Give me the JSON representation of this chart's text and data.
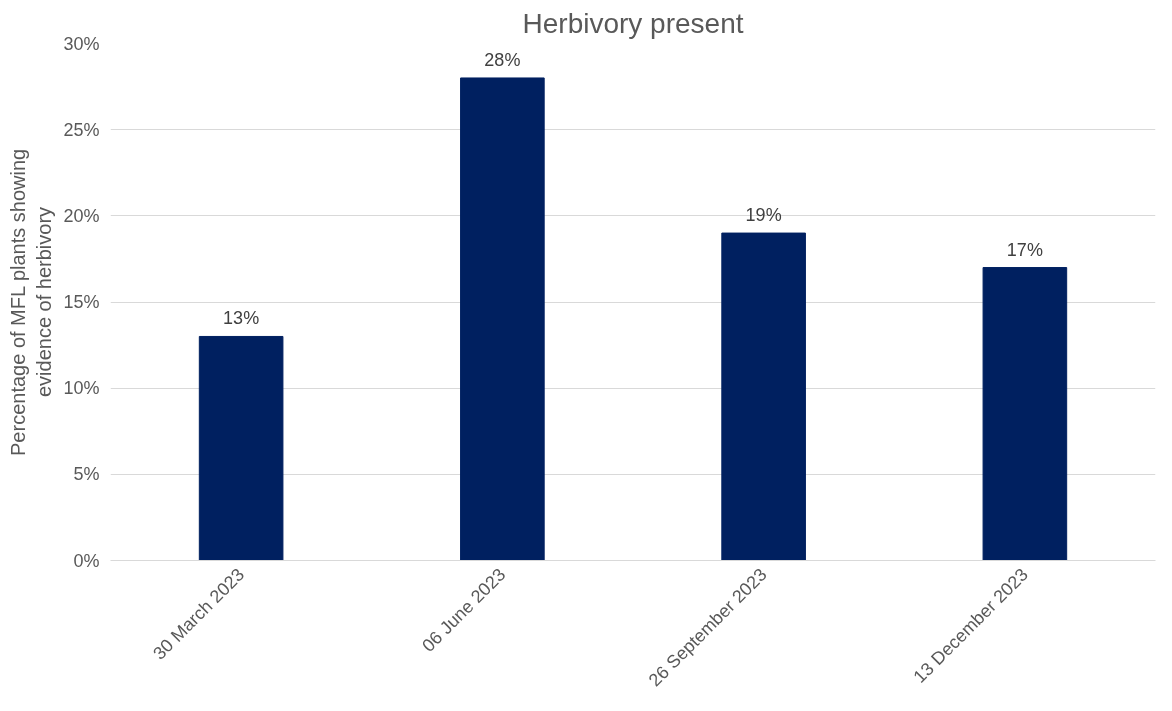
{
  "chart_data": {
    "type": "bar",
    "title": "Herbivory present",
    "ylabel": "Percentage of MFL plants showing evidence of herbivory",
    "categories": [
      "30 March 2023",
      "06 June 2023",
      "26 September 2023",
      "13 December 2023"
    ],
    "values": [
      13,
      28,
      19,
      17
    ],
    "color": "#002060",
    "value_labels": [
      "13%",
      "28%",
      "19%",
      "17%"
    ],
    "ylim": [
      0,
      30
    ],
    "yticks": [
      {
        "value": 0,
        "label": "0%"
      },
      {
        "value": 5,
        "label": "5%"
      },
      {
        "value": 10,
        "label": "10%"
      },
      {
        "value": 15,
        "label": "15%"
      },
      {
        "value": 20,
        "label": "20%"
      },
      {
        "value": 25,
        "label": "25%"
      },
      {
        "value": 30,
        "label": "30%"
      }
    ],
    "grid": "y"
  }
}
